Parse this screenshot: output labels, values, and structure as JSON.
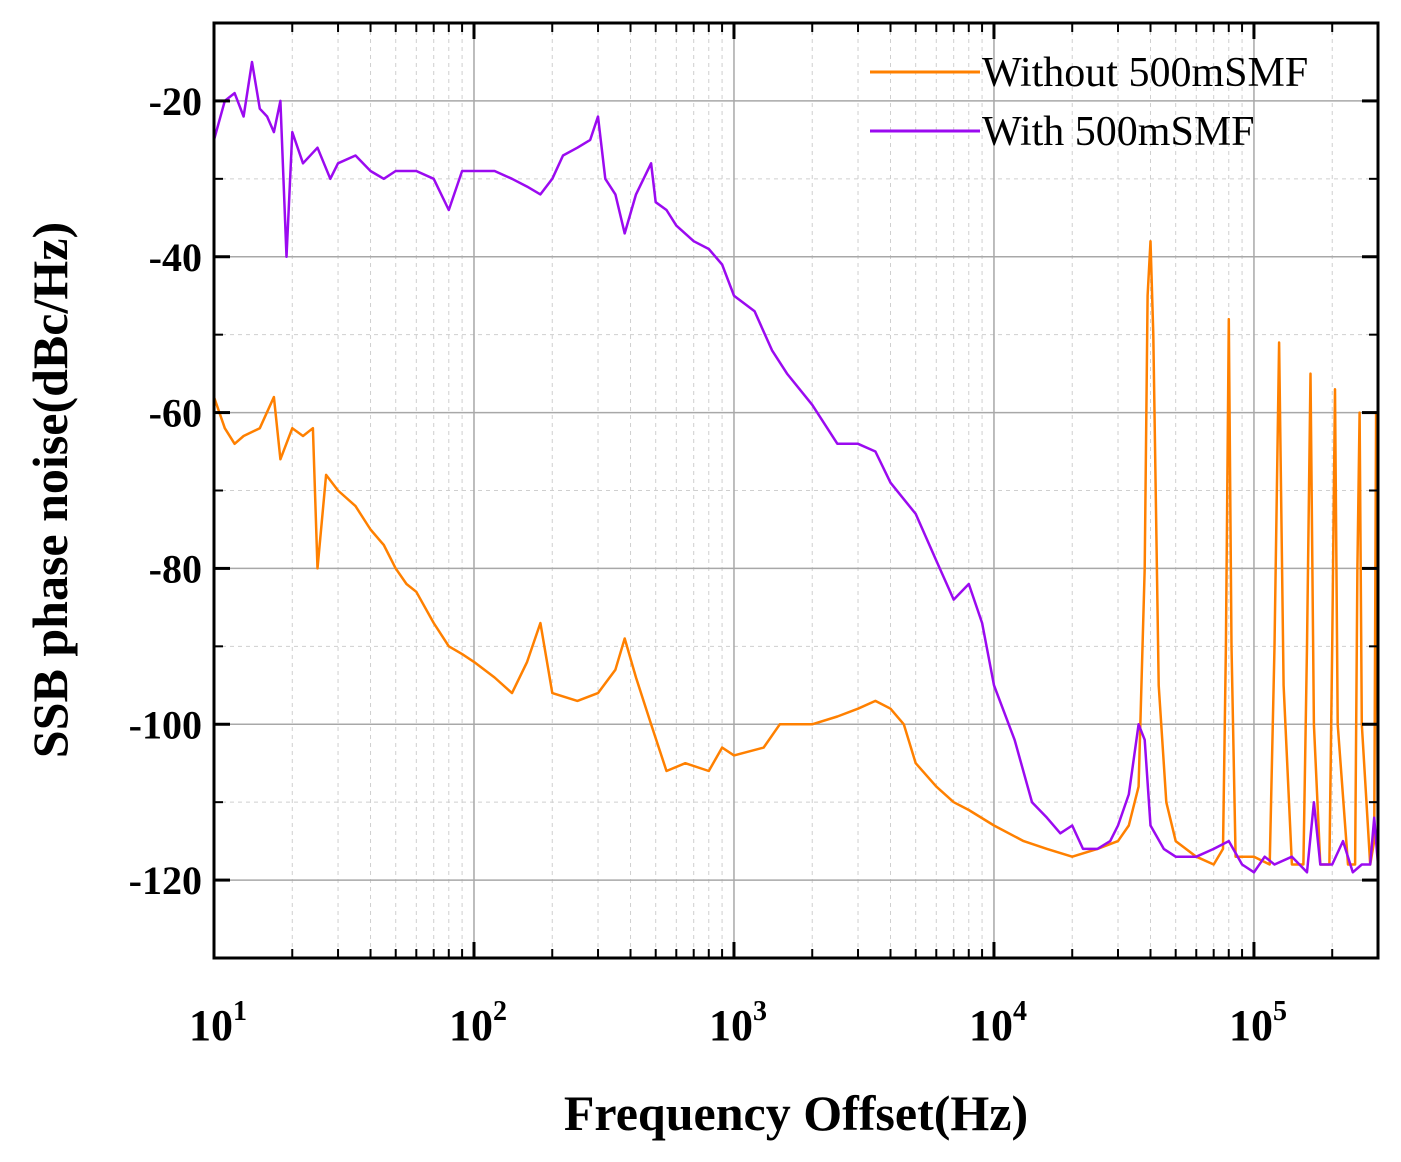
{
  "chart_data": {
    "type": "line",
    "title": "",
    "xlabel": "Frequency Offset(Hz)",
    "ylabel": "SSB phase noise(dBc/Hz)",
    "xscale": "log",
    "xlim": [
      10,
      300000
    ],
    "ylim": [
      -130,
      -10
    ],
    "grid": true,
    "legend_position": "top-right",
    "yticks": [
      -20,
      -40,
      -60,
      -80,
      -100,
      -120
    ],
    "ytick_labels": [
      "-20",
      "-40",
      "-60",
      "-80",
      "-100",
      "-120"
    ],
    "xticks": [
      10,
      100,
      1000,
      10000,
      100000
    ],
    "xtick_labels": [
      {
        "base": "10",
        "exp": "1"
      },
      {
        "base": "10",
        "exp": "2"
      },
      {
        "base": "10",
        "exp": "3"
      },
      {
        "base": "10",
        "exp": "4"
      },
      {
        "base": "10",
        "exp": "5"
      }
    ],
    "series": [
      {
        "name": "Without 500mSMF",
        "color": "#FF8000",
        "points": [
          [
            10,
            -58
          ],
          [
            11,
            -62
          ],
          [
            12,
            -64
          ],
          [
            13,
            -63
          ],
          [
            15,
            -62
          ],
          [
            17,
            -58
          ],
          [
            18,
            -66
          ],
          [
            20,
            -62
          ],
          [
            22,
            -63
          ],
          [
            24,
            -62
          ],
          [
            25,
            -80
          ],
          [
            27,
            -68
          ],
          [
            30,
            -70
          ],
          [
            35,
            -72
          ],
          [
            40,
            -75
          ],
          [
            45,
            -77
          ],
          [
            50,
            -80
          ],
          [
            55,
            -82
          ],
          [
            60,
            -83
          ],
          [
            70,
            -87
          ],
          [
            80,
            -90
          ],
          [
            90,
            -91
          ],
          [
            100,
            -92
          ],
          [
            120,
            -94
          ],
          [
            140,
            -96
          ],
          [
            160,
            -92
          ],
          [
            180,
            -87
          ],
          [
            200,
            -96
          ],
          [
            250,
            -97
          ],
          [
            300,
            -96
          ],
          [
            350,
            -93
          ],
          [
            380,
            -89
          ],
          [
            420,
            -94
          ],
          [
            480,
            -100
          ],
          [
            550,
            -106
          ],
          [
            650,
            -105
          ],
          [
            800,
            -106
          ],
          [
            900,
            -103
          ],
          [
            1000,
            -104
          ],
          [
            1300,
            -103
          ],
          [
            1500,
            -100
          ],
          [
            2000,
            -100
          ],
          [
            2500,
            -99
          ],
          [
            3000,
            -98
          ],
          [
            3500,
            -97
          ],
          [
            4000,
            -98
          ],
          [
            4500,
            -100
          ],
          [
            5000,
            -105
          ],
          [
            6000,
            -108
          ],
          [
            7000,
            -110
          ],
          [
            8000,
            -111
          ],
          [
            10000,
            -113
          ],
          [
            13000,
            -115
          ],
          [
            16000,
            -116
          ],
          [
            20000,
            -117
          ],
          [
            25000,
            -116
          ],
          [
            30000,
            -115
          ],
          [
            33000,
            -113
          ],
          [
            36000,
            -108
          ],
          [
            38000,
            -80
          ],
          [
            39000,
            -45
          ],
          [
            40000,
            -38
          ],
          [
            41000,
            -50
          ],
          [
            43000,
            -95
          ],
          [
            46000,
            -110
          ],
          [
            50000,
            -115
          ],
          [
            60000,
            -117
          ],
          [
            70000,
            -118
          ],
          [
            76000,
            -116
          ],
          [
            78000,
            -90
          ],
          [
            80000,
            -48
          ],
          [
            82000,
            -90
          ],
          [
            85000,
            -117
          ],
          [
            100000,
            -117
          ],
          [
            115000,
            -118
          ],
          [
            120000,
            -90
          ],
          [
            125000,
            -51
          ],
          [
            130000,
            -95
          ],
          [
            140000,
            -118
          ],
          [
            155000,
            -118
          ],
          [
            160000,
            -90
          ],
          [
            165000,
            -55
          ],
          [
            170000,
            -100
          ],
          [
            180000,
            -118
          ],
          [
            195000,
            -118
          ],
          [
            200000,
            -90
          ],
          [
            205000,
            -57
          ],
          [
            210000,
            -100
          ],
          [
            230000,
            -118
          ],
          [
            245000,
            -118
          ],
          [
            250000,
            -80
          ],
          [
            255000,
            -60
          ],
          [
            260000,
            -100
          ],
          [
            280000,
            -118
          ],
          [
            290000,
            -115
          ],
          [
            295000,
            -60
          ],
          [
            300000,
            -120
          ]
        ]
      },
      {
        "name": "With 500mSMF",
        "color": "#9B0AF0",
        "points": [
          [
            10,
            -25
          ],
          [
            11,
            -20
          ],
          [
            12,
            -19
          ],
          [
            13,
            -22
          ],
          [
            14,
            -15
          ],
          [
            15,
            -21
          ],
          [
            16,
            -22
          ],
          [
            17,
            -24
          ],
          [
            18,
            -20
          ],
          [
            19,
            -40
          ],
          [
            20,
            -24
          ],
          [
            22,
            -28
          ],
          [
            25,
            -26
          ],
          [
            28,
            -30
          ],
          [
            30,
            -28
          ],
          [
            35,
            -27
          ],
          [
            40,
            -29
          ],
          [
            45,
            -30
          ],
          [
            50,
            -29
          ],
          [
            60,
            -29
          ],
          [
            70,
            -30
          ],
          [
            80,
            -34
          ],
          [
            90,
            -29
          ],
          [
            100,
            -29
          ],
          [
            120,
            -29
          ],
          [
            140,
            -30
          ],
          [
            160,
            -31
          ],
          [
            180,
            -32
          ],
          [
            200,
            -30
          ],
          [
            220,
            -27
          ],
          [
            250,
            -26
          ],
          [
            280,
            -25
          ],
          [
            300,
            -22
          ],
          [
            320,
            -30
          ],
          [
            350,
            -32
          ],
          [
            380,
            -37
          ],
          [
            420,
            -32
          ],
          [
            480,
            -28
          ],
          [
            500,
            -33
          ],
          [
            550,
            -34
          ],
          [
            600,
            -36
          ],
          [
            700,
            -38
          ],
          [
            800,
            -39
          ],
          [
            900,
            -41
          ],
          [
            1000,
            -45
          ],
          [
            1200,
            -47
          ],
          [
            1400,
            -52
          ],
          [
            1600,
            -55
          ],
          [
            2000,
            -59
          ],
          [
            2500,
            -64
          ],
          [
            3000,
            -64
          ],
          [
            3500,
            -65
          ],
          [
            4000,
            -69
          ],
          [
            5000,
            -73
          ],
          [
            6000,
            -79
          ],
          [
            7000,
            -84
          ],
          [
            8000,
            -82
          ],
          [
            9000,
            -87
          ],
          [
            10000,
            -95
          ],
          [
            12000,
            -102
          ],
          [
            14000,
            -110
          ],
          [
            16000,
            -112
          ],
          [
            18000,
            -114
          ],
          [
            20000,
            -113
          ],
          [
            22000,
            -116
          ],
          [
            25000,
            -116
          ],
          [
            28000,
            -115
          ],
          [
            30000,
            -113
          ],
          [
            33000,
            -109
          ],
          [
            36000,
            -100
          ],
          [
            38000,
            -102
          ],
          [
            40000,
            -113
          ],
          [
            45000,
            -116
          ],
          [
            50000,
            -117
          ],
          [
            60000,
            -117
          ],
          [
            70000,
            -116
          ],
          [
            80000,
            -115
          ],
          [
            90000,
            -118
          ],
          [
            100000,
            -119
          ],
          [
            110000,
            -117
          ],
          [
            120000,
            -118
          ],
          [
            140000,
            -117
          ],
          [
            160000,
            -119
          ],
          [
            170000,
            -110
          ],
          [
            180000,
            -118
          ],
          [
            200000,
            -118
          ],
          [
            220000,
            -115
          ],
          [
            240000,
            -119
          ],
          [
            260000,
            -118
          ],
          [
            280000,
            -118
          ],
          [
            290000,
            -112
          ],
          [
            300000,
            -118
          ]
        ]
      }
    ]
  }
}
